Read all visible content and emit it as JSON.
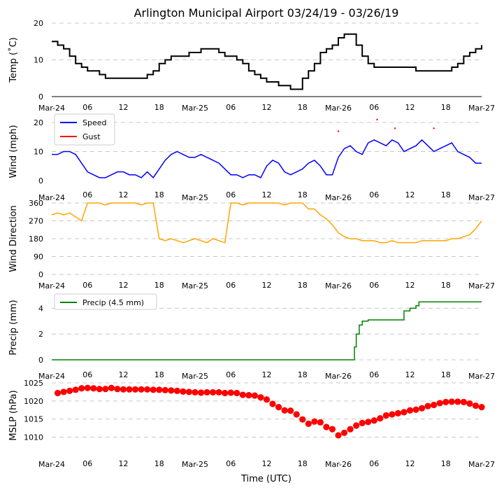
{
  "title": "Arlington Municipal Airport 03/24/19 - 03/26/19",
  "xlabel": "Time (UTC)",
  "x_ticks": [
    {
      "hour": 0,
      "label": "Mar-24"
    },
    {
      "hour": 6,
      "label": "06"
    },
    {
      "hour": 12,
      "label": "12"
    },
    {
      "hour": 18,
      "label": "18"
    },
    {
      "hour": 24,
      "label": "Mar-25"
    },
    {
      "hour": 30,
      "label": "06"
    },
    {
      "hour": 36,
      "label": "12"
    },
    {
      "hour": 42,
      "label": "18"
    },
    {
      "hour": 48,
      "label": "Mar-26"
    },
    {
      "hour": 54,
      "label": "06"
    },
    {
      "hour": 60,
      "label": "12"
    },
    {
      "hour": 66,
      "label": "18"
    },
    {
      "hour": 72,
      "label": "Mar-27"
    }
  ],
  "colors": {
    "temp": "#000000",
    "speed": "#0000ff",
    "gust": "#ff0000",
    "dir": "#ffa500",
    "precip": "#008000",
    "mslp": "#ff0000",
    "grid": "#c8c8c8"
  },
  "chart_data": [
    {
      "type": "line",
      "ylabel": "Temp ($^\\circ$C)",
      "ylabel_display": "Temp (˚C)",
      "ylim": [
        0,
        20
      ],
      "yticks": [
        "0",
        "10",
        "20"
      ],
      "x_unit": "hours since Mar-24 00 UTC",
      "series": [
        {
          "name": "",
          "color": "#000000",
          "x": [
            0,
            1,
            2,
            3,
            4,
            5,
            6,
            7,
            8,
            9,
            10,
            11,
            12,
            13,
            14,
            15,
            16,
            17,
            18,
            19,
            20,
            21,
            22,
            23,
            24,
            25,
            26,
            27,
            28,
            29,
            30,
            31,
            32,
            33,
            34,
            35,
            36,
            37,
            38,
            39,
            40,
            41,
            42,
            43,
            44,
            45,
            46,
            47,
            48,
            49,
            50,
            51,
            52,
            53,
            54,
            55,
            56,
            57,
            58,
            59,
            60,
            61,
            62,
            63,
            64,
            65,
            66,
            67,
            68,
            69,
            70,
            71,
            72
          ],
          "y": [
            15,
            14,
            13,
            11,
            9,
            8,
            7,
            7,
            6,
            5,
            5,
            5,
            5,
            5,
            5,
            5,
            6,
            7,
            9,
            10,
            11,
            11,
            11,
            12,
            12,
            13,
            13,
            13,
            12,
            11,
            11,
            10,
            9,
            7,
            6,
            5,
            4,
            4,
            3,
            3,
            2,
            2,
            5,
            7,
            9,
            12,
            13,
            14,
            16,
            17,
            17,
            14,
            11,
            9,
            8,
            8,
            8,
            8,
            8,
            8,
            8,
            7,
            7,
            7,
            7,
            7,
            7,
            8,
            9,
            11,
            12,
            13,
            14
          ]
        }
      ]
    },
    {
      "type": "line",
      "ylabel": "Wind (mph)",
      "ylim": [
        0,
        20
      ],
      "yticks": [
        "0",
        "10",
        "20"
      ],
      "legend": [
        "Speed",
        "Gust"
      ],
      "series": [
        {
          "name": "Speed",
          "color": "#0000ff",
          "x": [
            0,
            1,
            2,
            3,
            4,
            5,
            6,
            7,
            8,
            9,
            10,
            11,
            12,
            13,
            14,
            15,
            16,
            17,
            18,
            19,
            20,
            21,
            22,
            23,
            24,
            25,
            26,
            27,
            28,
            29,
            30,
            31,
            32,
            33,
            34,
            35,
            36,
            37,
            38,
            39,
            40,
            41,
            42,
            43,
            44,
            45,
            46,
            47,
            48,
            49,
            50,
            51,
            52,
            53,
            54,
            55,
            56,
            57,
            58,
            59,
            60,
            61,
            62,
            63,
            64,
            65,
            66,
            67,
            68,
            69,
            70,
            71,
            72
          ],
          "y": [
            9,
            9,
            10,
            10,
            9,
            6,
            3,
            2,
            1,
            1,
            2,
            3,
            3,
            2,
            2,
            1,
            3,
            1,
            4,
            7,
            9,
            10,
            9,
            8,
            8,
            9,
            8,
            7,
            6,
            4,
            2,
            2,
            1,
            2,
            2,
            1,
            5,
            7,
            6,
            3,
            2,
            3,
            4,
            6,
            7,
            5,
            2,
            2,
            8,
            11,
            12,
            10,
            9,
            13,
            14,
            13,
            12,
            14,
            13,
            10,
            11,
            12,
            14,
            12,
            10,
            11,
            12,
            13,
            10,
            9,
            8,
            6,
            6
          ]
        },
        {
          "name": "Gust",
          "color": "#ff0000",
          "x": [
            48,
            54.5,
            57.5,
            64
          ],
          "y": [
            17,
            21,
            18,
            18
          ]
        }
      ]
    },
    {
      "type": "line",
      "ylabel": "Wind Direction",
      "ylim": [
        0,
        360
      ],
      "yticks": [
        "0",
        "90",
        "180",
        "270",
        "360"
      ],
      "series": [
        {
          "name": "",
          "color": "#ffa500",
          "x": [
            0,
            1,
            2,
            3,
            4,
            5,
            6,
            7,
            8,
            9,
            10,
            11,
            12,
            13,
            14,
            15,
            16,
            17,
            18,
            19,
            20,
            21,
            22,
            23,
            24,
            25,
            26,
            27,
            28,
            29,
            30,
            31,
            32,
            33,
            34,
            35,
            36,
            37,
            38,
            39,
            40,
            41,
            42,
            43,
            44,
            45,
            46,
            47,
            48,
            49,
            50,
            51,
            52,
            53,
            54,
            55,
            56,
            57,
            58,
            59,
            60,
            61,
            62,
            63,
            64,
            65,
            66,
            67,
            68,
            69,
            70,
            71,
            72
          ],
          "y": [
            300,
            310,
            300,
            310,
            290,
            270,
            360,
            360,
            360,
            350,
            360,
            360,
            360,
            360,
            360,
            350,
            360,
            360,
            180,
            170,
            180,
            170,
            160,
            170,
            180,
            170,
            160,
            180,
            170,
            160,
            360,
            360,
            350,
            360,
            360,
            360,
            360,
            360,
            360,
            350,
            360,
            360,
            360,
            330,
            330,
            300,
            280,
            250,
            210,
            190,
            180,
            180,
            170,
            170,
            170,
            160,
            160,
            170,
            160,
            160,
            160,
            160,
            170,
            170,
            170,
            170,
            170,
            180,
            180,
            190,
            200,
            230,
            270
          ]
        }
      ]
    },
    {
      "type": "line",
      "ylabel": "Precip (mm)",
      "ylim": [
        0,
        5
      ],
      "yticks": [
        "0",
        "2",
        "4"
      ],
      "legend": [
        "Precip (4.5 mm)"
      ],
      "series": [
        {
          "name": "Precip (4.5 mm)",
          "color": "#008000",
          "x": [
            0,
            48,
            50,
            50.7,
            51,
            51.5,
            52,
            53,
            57,
            58,
            59,
            60,
            61,
            61.5,
            72
          ],
          "y": [
            0,
            0,
            0,
            1,
            2,
            2.7,
            3,
            3.1,
            3.1,
            3.1,
            3.8,
            4.0,
            4.2,
            4.5,
            4.5
          ]
        }
      ]
    },
    {
      "type": "scatter",
      "ylabel": "MSLP (hPa)",
      "ylim": [
        1007,
        1025
      ],
      "yticks": [
        "1010",
        "1015",
        "1020",
        "1025"
      ],
      "series": [
        {
          "name": "",
          "color": "#ff0000",
          "x": [
            1,
            2,
            3,
            4,
            5,
            6,
            7,
            8,
            9,
            10,
            11,
            12,
            13,
            14,
            15,
            16,
            17,
            18,
            19,
            20,
            21,
            22,
            23,
            24,
            25,
            26,
            27,
            28,
            29,
            30,
            31,
            32,
            33,
            34,
            35,
            36,
            37,
            38,
            39,
            40,
            41,
            42,
            43,
            44,
            45,
            46,
            47,
            48,
            49,
            50,
            51,
            52,
            53,
            54,
            55,
            56,
            57,
            58,
            59,
            60,
            61,
            62,
            63,
            64,
            65,
            66,
            67,
            68,
            69,
            70,
            71,
            72
          ],
          "y": [
            1022.2,
            1022.5,
            1022.8,
            1023.1,
            1023.5,
            1023.6,
            1023.5,
            1023.3,
            1023.3,
            1023.6,
            1023.3,
            1023.2,
            1023.2,
            1023.2,
            1023.2,
            1023.2,
            1023.1,
            1023.1,
            1023,
            1022.9,
            1022.8,
            1022.6,
            1022.5,
            1022.4,
            1022.3,
            1022.4,
            1022.4,
            1022.4,
            1022.2,
            1022.3,
            1022.2,
            1021.7,
            1021.6,
            1021.5,
            1021.0,
            1020.4,
            1019.2,
            1018.3,
            1017.4,
            1017.3,
            1016.3,
            1014.9,
            1013.7,
            1014.3,
            1014.1,
            1012.8,
            1012.2,
            1010.5,
            1011.2,
            1012.2,
            1013.2,
            1013.9,
            1014.2,
            1014.6,
            1015.2,
            1016.0,
            1016.3,
            1016.6,
            1016.9,
            1017.4,
            1017.6,
            1018.0,
            1018.6,
            1018.9,
            1019.4,
            1019.7,
            1019.8,
            1019.8,
            1019.7,
            1019.3,
            1018.7,
            1018.3
          ]
        }
      ]
    }
  ]
}
